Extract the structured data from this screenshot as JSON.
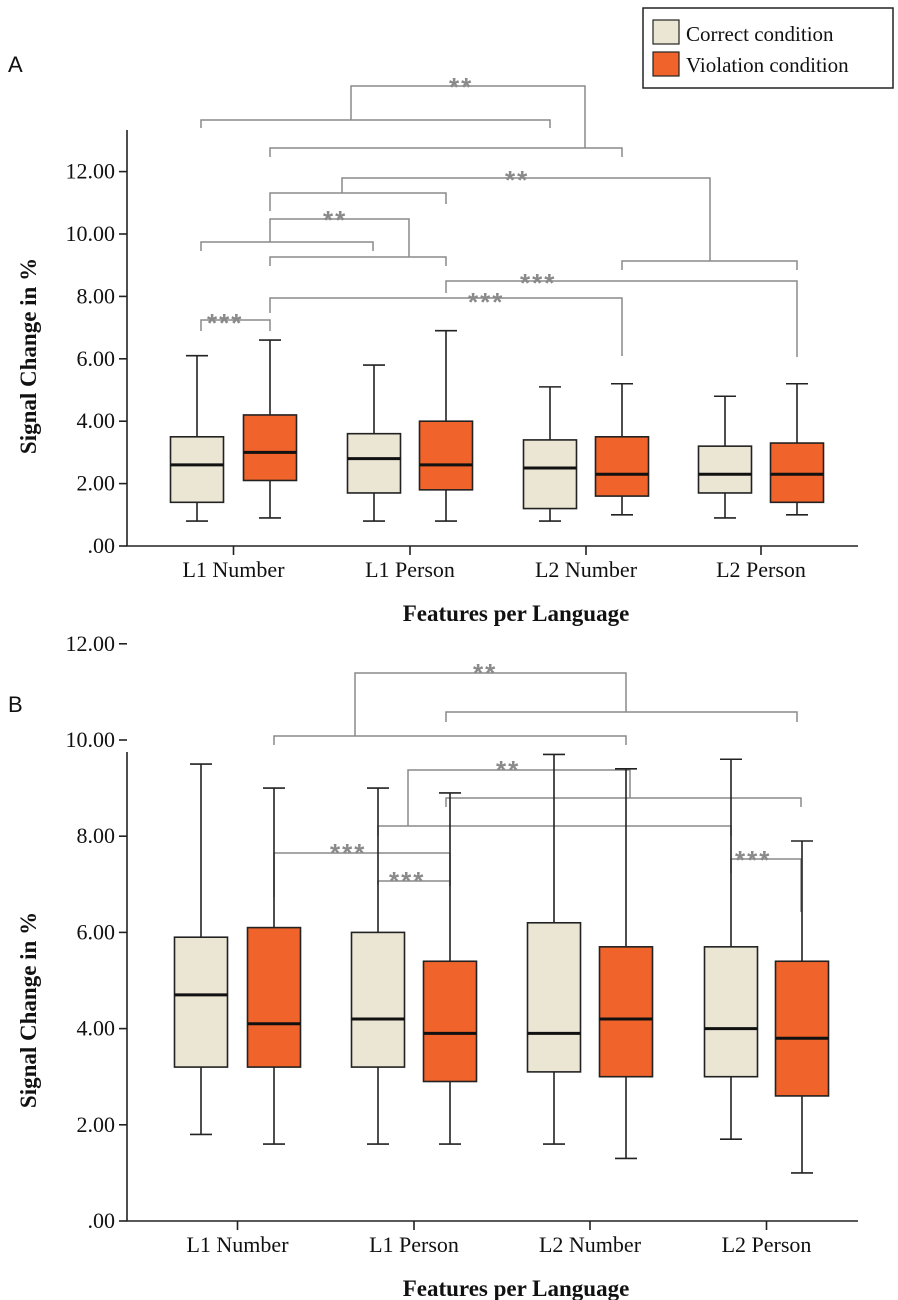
{
  "legend": {
    "items": [
      {
        "label": "Correct condition",
        "color": "#ebe6d4"
      },
      {
        "label": "Violation condition",
        "color": "#f0632a"
      }
    ]
  },
  "chart_data": [
    {
      "type": "box",
      "panel_label": "A",
      "xlabel": "Features per Language",
      "ylabel": "Signal Change in %",
      "ylim": [
        0,
        14
      ],
      "yticks": [
        0,
        2,
        4,
        6,
        8,
        10,
        12
      ],
      "ytick_labels": [
        ".00",
        "2.00",
        "4.00",
        "6.00",
        "8.00",
        "10.00",
        "12.00"
      ],
      "categories": [
        "L1 Number",
        "L1 Person",
        "L2 Number",
        "L2 Person"
      ],
      "series": [
        {
          "name": "Correct condition",
          "color": "#ebe6d4",
          "boxes": [
            {
              "min": 0.8,
              "q1": 1.4,
              "median": 2.6,
              "q3": 3.5,
              "max": 6.1
            },
            {
              "min": 0.8,
              "q1": 1.7,
              "median": 2.8,
              "q3": 3.6,
              "max": 5.8
            },
            {
              "min": 0.8,
              "q1": 1.2,
              "median": 2.5,
              "q3": 3.4,
              "max": 5.1
            },
            {
              "min": 0.9,
              "q1": 1.7,
              "median": 2.3,
              "q3": 3.2,
              "max": 4.8
            }
          ]
        },
        {
          "name": "Violation condition",
          "color": "#f0632a",
          "boxes": [
            {
              "min": 0.9,
              "q1": 2.1,
              "median": 3.0,
              "q3": 4.2,
              "max": 6.6
            },
            {
              "min": 0.8,
              "q1": 1.8,
              "median": 2.6,
              "q3": 4.0,
              "max": 6.9
            },
            {
              "min": 1.0,
              "q1": 1.6,
              "median": 2.3,
              "q3": 3.5,
              "max": 5.2
            },
            {
              "min": 1.0,
              "q1": 1.4,
              "median": 2.3,
              "q3": 3.3,
              "max": 5.2
            }
          ]
        }
      ],
      "significance_labels": [
        "**",
        "**",
        "**",
        "***",
        "***",
        "***"
      ]
    },
    {
      "type": "box",
      "panel_label": "B",
      "xlabel": "Features per Language",
      "ylabel": "Signal Change in %",
      "ylim": [
        0,
        14
      ],
      "yticks": [
        0,
        2,
        4,
        6,
        8,
        10,
        12
      ],
      "ytick_labels": [
        ".00",
        "2.00",
        "4.00",
        "6.00",
        "8.00",
        "10.00",
        "12.00"
      ],
      "categories": [
        "L1 Number",
        "L1 Person",
        "L2 Number",
        "L2 Person"
      ],
      "series": [
        {
          "name": "Correct condition",
          "color": "#ebe6d4",
          "boxes": [
            {
              "min": 1.8,
              "q1": 3.2,
              "median": 4.7,
              "q3": 5.9,
              "max": 9.5
            },
            {
              "min": 1.6,
              "q1": 3.2,
              "median": 4.2,
              "q3": 6.0,
              "max": 9.0
            },
            {
              "min": 1.6,
              "q1": 3.1,
              "median": 3.9,
              "q3": 6.2,
              "max": 9.7
            },
            {
              "min": 1.7,
              "q1": 3.0,
              "median": 4.0,
              "q3": 5.7,
              "max": 9.6
            }
          ]
        },
        {
          "name": "Violation condition",
          "color": "#f0632a",
          "boxes": [
            {
              "min": 1.6,
              "q1": 3.2,
              "median": 4.1,
              "q3": 6.1,
              "max": 9.0
            },
            {
              "min": 1.6,
              "q1": 2.9,
              "median": 3.9,
              "q3": 5.4,
              "max": 8.9
            },
            {
              "min": 1.3,
              "q1": 3.0,
              "median": 4.2,
              "q3": 5.7,
              "max": 9.4
            },
            {
              "min": 1.0,
              "q1": 2.6,
              "median": 3.8,
              "q3": 5.4,
              "max": 7.9
            }
          ]
        }
      ],
      "significance_labels": [
        "**",
        "**",
        "***",
        "***",
        "***"
      ]
    }
  ]
}
